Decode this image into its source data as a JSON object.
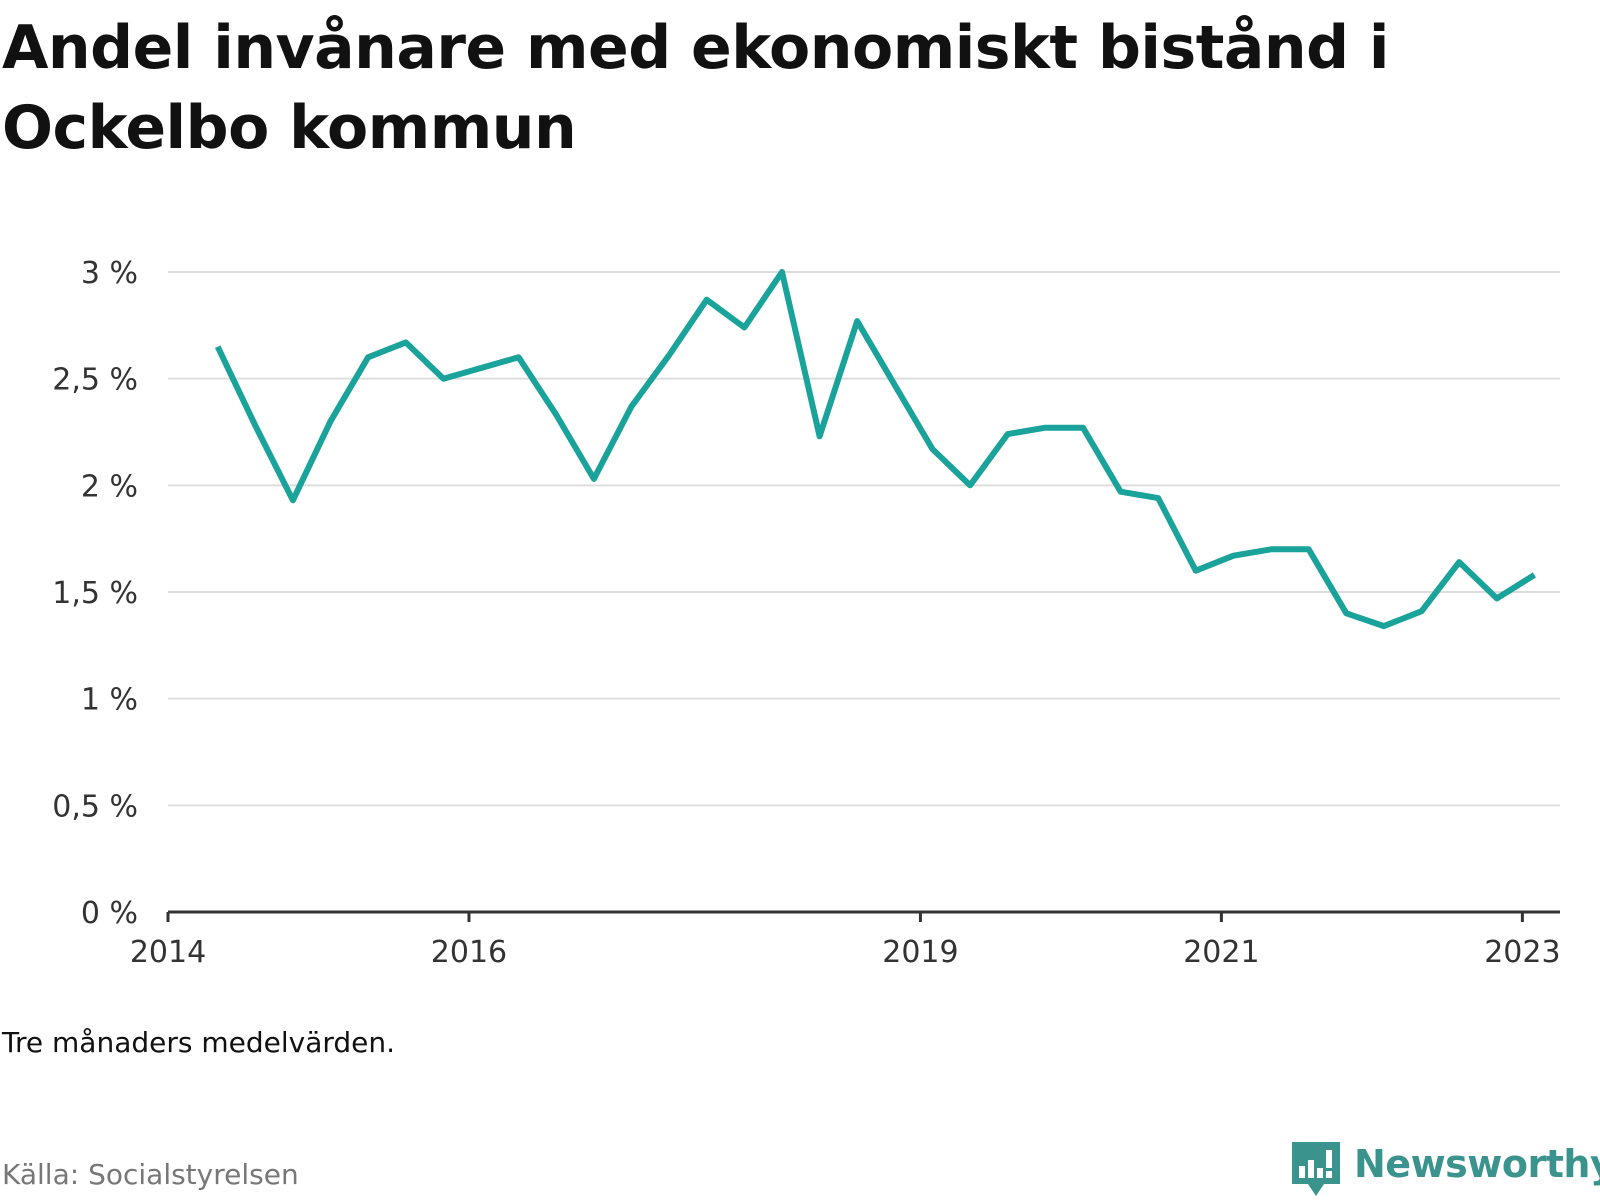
{
  "chart_data": {
    "type": "line",
    "title": "Andel invånare med ekonomiskt bistånd i Ockelbo kommun",
    "xlabel": "",
    "ylabel": "",
    "ylim": [
      0,
      3
    ],
    "yticks": [
      0,
      0.5,
      1,
      1.5,
      2,
      2.5,
      3
    ],
    "ytick_labels": [
      "0 %",
      "0,5 %",
      "1 %",
      "1,5 %",
      "2 %",
      "2,5 %",
      "3 %"
    ],
    "xlim": [
      2014.0,
      2023.25
    ],
    "xticks": [
      2014,
      2016,
      2019,
      2021,
      2023
    ],
    "xtick_labels": [
      "2014",
      "2016",
      "2019",
      "2021",
      "2023"
    ],
    "grid": true,
    "line_color": "#1aa39a",
    "series": [
      {
        "x": [
          2014.33,
          2014.58,
          2014.83,
          2015.08,
          2015.33,
          2015.58,
          2015.83,
          2016.08,
          2016.33,
          2016.58,
          2016.83,
          2017.08,
          2017.33,
          2017.58,
          2017.83,
          2018.08,
          2018.33,
          2018.58,
          2018.83,
          2019.08,
          2019.33,
          2019.58,
          2019.83,
          2020.08,
          2020.33,
          2020.58,
          2020.83,
          2021.08,
          2021.33,
          2021.58,
          2021.83,
          2022.08,
          2022.33,
          2022.58,
          2022.83,
          2023.08
        ],
        "values": [
          2.65,
          2.28,
          1.93,
          2.3,
          2.6,
          2.67,
          2.5,
          2.55,
          2.6,
          2.33,
          2.03,
          2.37,
          2.61,
          2.87,
          2.74,
          3.0,
          2.23,
          2.77,
          2.47,
          2.17,
          2.0,
          2.24,
          2.27,
          2.27,
          1.97,
          1.94,
          1.6,
          1.67,
          1.7,
          1.7,
          1.4,
          1.34,
          1.41,
          1.64,
          1.47,
          1.58
        ]
      }
    ]
  },
  "note": "Tre månaders medelvärden.",
  "source": "Källa: Socialstyrelsen",
  "brand": {
    "name": "Newsworthy",
    "color": "#3a948d",
    "icon": "newsworthy-logo-icon"
  }
}
